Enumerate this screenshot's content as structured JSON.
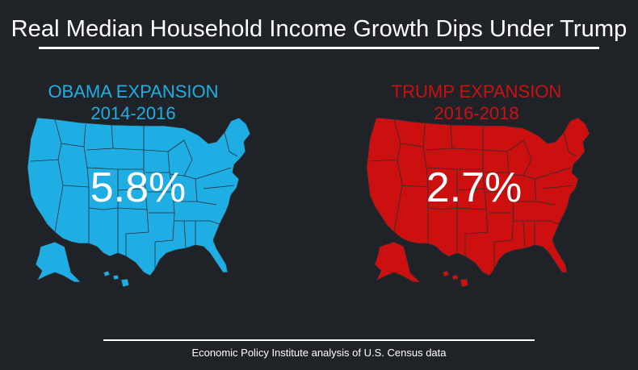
{
  "title": "Real Median Household Income Growth Dips Under Trump",
  "panels": [
    {
      "heading": "OBAMA EXPANSION",
      "period": "2014-2016",
      "value": "5.8%",
      "color": "#1eaee4"
    },
    {
      "heading": "TRUMP EXPANSION",
      "period": "2016-2018",
      "value": "2.7%",
      "color": "#cc1010"
    }
  ],
  "source": "Economic Policy Institute analysis of U.S. Census data",
  "colors": {
    "background": "#1f2328",
    "text": "#ffffff",
    "map_borders": "#2a2e33"
  }
}
